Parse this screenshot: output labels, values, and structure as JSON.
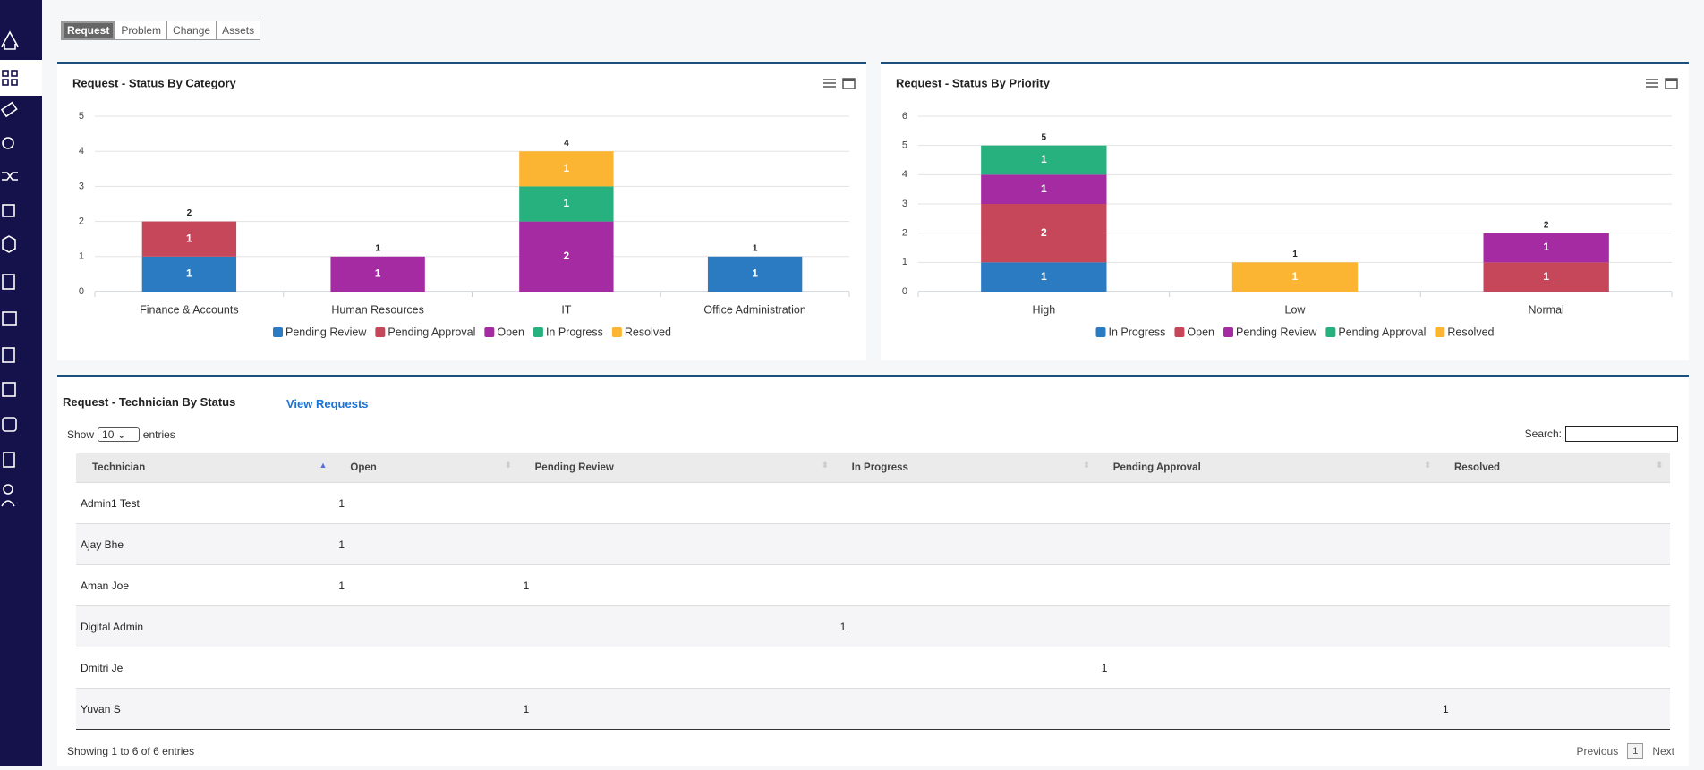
{
  "tabs": [
    "Request",
    "Problem",
    "Change",
    "Assets"
  ],
  "chart_data": [
    {
      "type": "bar",
      "stacked": true,
      "title": "Request - Status By Category",
      "categories": [
        "Finance & Accounts",
        "Human Resources",
        "IT",
        "Office Administration"
      ],
      "series": [
        {
          "name": "Pending Review",
          "color": "#2b7bc3",
          "values": [
            1,
            null,
            null,
            1
          ]
        },
        {
          "name": "Pending Approval",
          "color": "#c7475a",
          "values": [
            1,
            null,
            null,
            null
          ]
        },
        {
          "name": "Open",
          "color": "#a52ba3",
          "values": [
            null,
            1,
            2,
            null
          ]
        },
        {
          "name": "In Progress",
          "color": "#27b17e",
          "values": [
            null,
            null,
            1,
            null
          ]
        },
        {
          "name": "Resolved",
          "color": "#fbb533",
          "values": [
            null,
            null,
            1,
            null
          ]
        }
      ],
      "totals": [
        2,
        1,
        4,
        1
      ],
      "ylim": [
        0,
        5
      ],
      "yticks": [
        0,
        1,
        2,
        3,
        4,
        5
      ],
      "grid": true,
      "legend": "bottom"
    },
    {
      "type": "bar",
      "stacked": true,
      "title": "Request - Status By Priority",
      "categories": [
        "High",
        "Low",
        "Normal"
      ],
      "series": [
        {
          "name": "In Progress",
          "color": "#2b7bc3",
          "values": [
            1,
            null,
            null
          ]
        },
        {
          "name": "Open",
          "color": "#c7475a",
          "values": [
            2,
            null,
            1
          ]
        },
        {
          "name": "Pending Review",
          "color": "#a52ba3",
          "values": [
            1,
            null,
            1
          ]
        },
        {
          "name": "Pending Approval",
          "color": "#27b17e",
          "values": [
            1,
            null,
            null
          ]
        },
        {
          "name": "Resolved",
          "color": "#fbb533",
          "values": [
            null,
            1,
            null
          ]
        }
      ],
      "totals": [
        5,
        1,
        2
      ],
      "ylim": [
        0,
        6
      ],
      "yticks": [
        0,
        1,
        2,
        3,
        4,
        5,
        6
      ],
      "grid": true,
      "legend": "bottom"
    }
  ],
  "table": {
    "title": "Request - Technician By Status",
    "link": "View Requests",
    "show": "Show",
    "length": "10",
    "entries": "entries",
    "search": "Search:",
    "columns": [
      "Technician",
      "Open",
      "Pending Review",
      "In Progress",
      "Pending Approval",
      "Resolved"
    ],
    "rows": [
      [
        "Admin1 Test",
        1,
        null,
        null,
        null,
        null
      ],
      [
        "Ajay Bhe",
        1,
        null,
        null,
        null,
        null
      ],
      [
        "Aman Joe",
        1,
        1,
        null,
        null,
        null
      ],
      [
        "Digital Admin",
        null,
        null,
        1,
        null,
        null
      ],
      [
        "Dmitri Je",
        null,
        null,
        null,
        1,
        null
      ],
      [
        "Yuvan S",
        null,
        1,
        null,
        null,
        1
      ]
    ],
    "info": "Showing 1 to 6 of 6 entries",
    "pagination": {
      "previous": "Previous",
      "page": 1,
      "next": "Next"
    }
  }
}
